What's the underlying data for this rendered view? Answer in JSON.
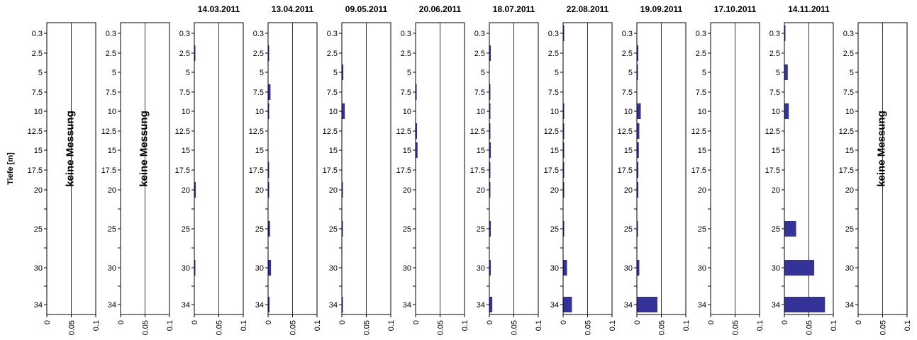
{
  "chart_data": {
    "type": "bar",
    "orientation": "horizontal",
    "ylabel": "Tiefe [m]",
    "depth_tick_labels": [
      "0.3",
      "2.5",
      "5",
      "7.5",
      "10",
      "12.5",
      "15",
      "17.5",
      "20",
      "25",
      "30",
      "34"
    ],
    "x_tick_labels": [
      "0",
      "0.05",
      "0.1"
    ],
    "xlim": [
      0,
      0.1
    ],
    "grid": true,
    "bar_color": "#333399",
    "no_data_label": "keine Messung",
    "panels": [
      {
        "title": "",
        "no_data": true,
        "values": []
      },
      {
        "title": "",
        "no_data": true,
        "values": []
      },
      {
        "title": "14.03.2011",
        "no_data": false,
        "values": [
          0,
          0.002,
          0,
          0,
          0,
          0,
          0,
          0,
          0.003,
          0,
          0.002,
          0
        ]
      },
      {
        "title": "13.04.2011",
        "no_data": false,
        "values": [
          0,
          0.002,
          0,
          0.005,
          0.002,
          0,
          0,
          0.002,
          0.002,
          0.004,
          0.006,
          0.003
        ]
      },
      {
        "title": "09.05.2011",
        "no_data": false,
        "values": [
          0,
          0,
          0.003,
          0,
          0.006,
          0,
          0,
          0,
          0.002,
          0.002,
          0,
          0.002
        ]
      },
      {
        "title": "20.06.2011",
        "no_data": false,
        "values": [
          0,
          0,
          0,
          0.002,
          0,
          0.003,
          0.004,
          0,
          0,
          0,
          0,
          0
        ]
      },
      {
        "title": "18.07.2011",
        "no_data": false,
        "values": [
          0,
          0.003,
          0,
          0.002,
          0.002,
          0.002,
          0.003,
          0.002,
          0.002,
          0.003,
          0.003,
          0.006
        ]
      },
      {
        "title": "22.08.2011",
        "no_data": false,
        "values": [
          0.002,
          0,
          0,
          0,
          0.001,
          0.002,
          0.002,
          0.002,
          0.002,
          0.002,
          0.008,
          0.018
        ]
      },
      {
        "title": "19.09.2011",
        "no_data": false,
        "values": [
          0,
          0.003,
          0.001,
          0,
          0.008,
          0.005,
          0.004,
          0.003,
          0.003,
          0.002,
          0.005,
          0.042
        ]
      },
      {
        "title": "17.10.2011",
        "no_data": false,
        "values": [
          0,
          0,
          0,
          0,
          0,
          0,
          0,
          0,
          0,
          0,
          0,
          0
        ]
      },
      {
        "title": "14.11.2011",
        "no_data": false,
        "values": [
          0.002,
          0,
          0.007,
          0,
          0.009,
          0,
          0,
          0,
          0,
          0.024,
          0.061,
          0.083
        ]
      },
      {
        "title": "",
        "no_data": true,
        "values": []
      }
    ]
  }
}
